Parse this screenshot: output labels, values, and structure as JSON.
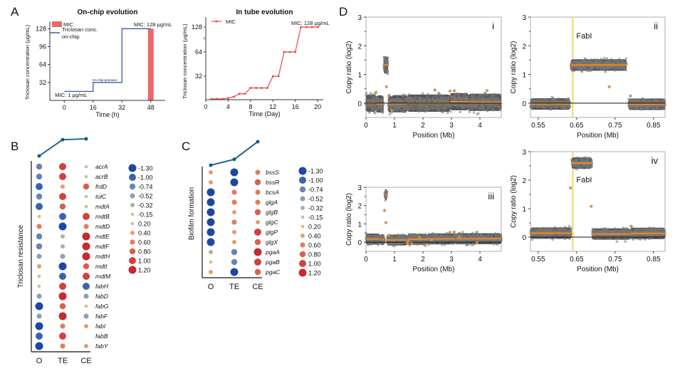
{
  "panel_letters": {
    "A": "A",
    "B": "B",
    "C": "C",
    "D": "D"
  },
  "colors": {
    "mic_bar": "#e8696b",
    "onchip_line": "#3b5ba9",
    "intube_line": "#e8474a",
    "trend_line": "#0e5a80",
    "cnv_points": "#555555",
    "cnv_segment": "#f08a1c",
    "fabi_marker": "#f2d36b"
  },
  "chart_data": [
    {
      "id": "A1",
      "type": "line",
      "title": "On-chip evolution",
      "xlabel": "Time (h)",
      "ylabel": "Triclosan concentration (μg/mL)",
      "xticks": [
        0,
        16,
        32,
        48
      ],
      "yticks": [
        32,
        64,
        96,
        128
      ],
      "xlim": [
        -8,
        56
      ],
      "ylim": [
        0,
        136
      ],
      "legend": [
        {
          "label": "MIC",
          "kind": "bar"
        },
        {
          "label": "Triclosan conc. on-chip",
          "kind": "line"
        }
      ],
      "legend_position": "top-left",
      "series": [
        {
          "name": "Triclosan conc. on-chip",
          "x": [
            0,
            16,
            16,
            32,
            32,
            48
          ],
          "y": [
            16,
            16,
            32,
            32,
            128,
            128
          ]
        }
      ],
      "bars": [
        {
          "name": "MIC",
          "x": 48,
          "value": 128
        }
      ],
      "annotations": [
        "MIC: 1 μg/mL",
        "MIC: 128 μg/mL",
        "On chip pressure"
      ]
    },
    {
      "id": "A2",
      "type": "line",
      "title": "In tube evolution",
      "xlabel": "Time (Day)",
      "ylabel": "Triclosan concentration (μg/mL)",
      "xticks": [
        0,
        4,
        8,
        12,
        16,
        20
      ],
      "yticks": [
        32,
        64,
        128
      ],
      "xlim": [
        0,
        21
      ],
      "ylim": [
        0,
        138
      ],
      "legend": [
        {
          "label": "MIC",
          "kind": "line-marker"
        }
      ],
      "legend_position": "top-left",
      "axis_break": true,
      "series": [
        {
          "name": "MIC",
          "x": [
            1,
            2,
            3,
            4,
            5,
            6,
            7,
            8,
            9,
            10,
            11,
            12,
            13,
            14,
            15,
            16,
            17,
            18,
            19,
            20
          ],
          "y": [
            1,
            1,
            1,
            2,
            4,
            8,
            8,
            16,
            16,
            16,
            16,
            32,
            32,
            64,
            64,
            64,
            128,
            128,
            128,
            128
          ],
          "ydisplay": [
            1,
            1,
            1,
            2,
            4,
            8,
            8,
            16,
            16,
            16,
            16,
            32,
            32,
            64,
            64,
            64,
            128,
            128,
            128,
            128
          ]
        }
      ],
      "annotations": [
        "MIC: 128 μg/mL"
      ]
    },
    {
      "id": "B",
      "type": "heatmap",
      "title": "",
      "ylabel": "Triclosan resistance",
      "columns": [
        "O",
        "TE",
        "CE"
      ],
      "trend": [
        0.0,
        1.0,
        1.05
      ],
      "rows": [
        "acrA",
        "acrB",
        "frdD",
        "tolC",
        "mdtA",
        "mdtB",
        "mdtD",
        "mdtE",
        "mdtF",
        "mdtH",
        "mdtI",
        "mdtM",
        "fabH",
        "fabD",
        "fabG",
        "fabF",
        "fabI",
        "fabB",
        "fabY"
      ],
      "values": [
        [
          -0.74,
          1.0,
          -0.15
        ],
        [
          -0.74,
          1.0,
          -0.15
        ],
        [
          -1.0,
          0.4,
          0.8
        ],
        [
          -0.74,
          1.0,
          -0.15
        ],
        [
          -1.0,
          0.8,
          0.2
        ],
        [
          0.2,
          -1.0,
          1.0
        ],
        [
          0.6,
          -1.3,
          0.6
        ],
        [
          -0.74,
          -0.32,
          1.2
        ],
        [
          -0.74,
          -0.32,
          1.2
        ],
        [
          -0.52,
          -0.52,
          1.2
        ],
        [
          0.4,
          -1.3,
          0.8
        ],
        [
          -0.15,
          -1.0,
          1.0
        ],
        [
          -0.15,
          1.0,
          -1.0
        ],
        [
          -0.52,
          1.2,
          -0.52
        ],
        [
          -1.3,
          0.8,
          0.2
        ],
        [
          -0.52,
          1.2,
          -0.52
        ],
        [
          -1.3,
          0.6,
          0.4
        ],
        [
          -1.0,
          1.0,
          null
        ],
        [
          -1.3,
          0.6,
          0.4
        ]
      ],
      "legend": [
        "-1.30",
        "-1.00",
        "-0.74",
        "-0.52",
        "-0.32",
        "-0.15",
        "0.20",
        "0.40",
        "0.60",
        "0.80",
        "1.00",
        "1.20"
      ]
    },
    {
      "id": "C",
      "type": "heatmap",
      "title": "",
      "ylabel": "Biofilm formation",
      "columns": [
        "O",
        "TE",
        "CE"
      ],
      "trend": [
        0.0,
        0.35,
        1.4
      ],
      "rows": [
        "bssS",
        "bssR",
        "bcsA",
        "glgA",
        "glgB",
        "glgC",
        "glgP",
        "glgX",
        "pgaA",
        "pgaB",
        "pgaC"
      ],
      "values": [
        [
          0.4,
          -1.3,
          0.6
        ],
        [
          0.4,
          -1.3,
          0.8
        ],
        [
          -1.3,
          0.6,
          0.6
        ],
        [
          -1.3,
          0.6,
          0.6
        ],
        [
          -1.3,
          0.4,
          0.8
        ],
        [
          -1.3,
          0.6,
          0.4
        ],
        [
          -1.3,
          0.4,
          1.0
        ],
        [
          -1.3,
          0.4,
          0.8
        ],
        [
          -0.32,
          -0.74,
          1.2
        ],
        [
          0.2,
          -0.74,
          1.0
        ],
        [
          0.4,
          -1.3,
          0.8
        ]
      ],
      "legend": [
        "-1.30",
        "-1.00",
        "-0.74",
        "-0.52",
        "-0.32",
        "-0.15",
        "0.20",
        "0.40",
        "0.60",
        "0.80",
        "1.00",
        "1.20"
      ]
    },
    {
      "id": "D-i",
      "type": "scatter",
      "label": "i",
      "xlabel": "Position (Mb)",
      "ylabel": "Copy ratio (log2)",
      "xlim": [
        0,
        4.75
      ],
      "ylim": [
        -0.5,
        3
      ],
      "xticks": [
        0,
        1,
        2,
        3,
        4
      ],
      "yticks": [
        0,
        1,
        2,
        3
      ],
      "segments": [
        [
          0,
          0.35,
          0.0
        ],
        [
          0.35,
          0.62,
          -0.03
        ],
        [
          0.62,
          0.78,
          1.33
        ],
        [
          0.78,
          0.9,
          -0.03
        ],
        [
          0.9,
          1.45,
          -0.02
        ],
        [
          1.45,
          2.95,
          0.0
        ],
        [
          2.95,
          3.6,
          0.05
        ],
        [
          3.6,
          4.75,
          0.03
        ]
      ],
      "baseline_noise": 0.3,
      "outliers": [
        [
          0.35,
          0.38
        ],
        [
          0.72,
          0.57
        ],
        [
          0.8,
          0.25
        ],
        [
          0.9,
          -0.25
        ],
        [
          2.42,
          0.46
        ],
        [
          2.95,
          0.42
        ],
        [
          3.1,
          0.43
        ],
        [
          4.25,
          0.44
        ]
      ]
    },
    {
      "id": "D-ii",
      "type": "scatter",
      "label": "ii",
      "xlabel": "Position (Mb)",
      "ylabel": "Copy ratio (log2)",
      "xlim": [
        0.53,
        0.88
      ],
      "ylim": [
        -0.5,
        3
      ],
      "xticks": [
        0.55,
        0.65,
        0.75,
        0.85
      ],
      "yticks": [
        0,
        1,
        2,
        3
      ],
      "segments": [
        [
          0.53,
          0.633,
          -0.03
        ],
        [
          0.635,
          0.78,
          1.33
        ],
        [
          0.785,
          0.88,
          -0.04
        ]
      ],
      "baseline_noise": 0.2,
      "outliers": [
        [
          0.735,
          0.57
        ],
        [
          0.79,
          0.25
        ]
      ],
      "marker_x": 0.64,
      "marker_label": "FabI"
    },
    {
      "id": "D-iii",
      "type": "scatter",
      "label": "iii",
      "xlabel": "Position (Mb)",
      "ylabel": "Copy ratio (log2)",
      "xlim": [
        0,
        4.75
      ],
      "ylim": [
        -0.5,
        3
      ],
      "xticks": [
        0,
        1,
        2,
        3,
        4
      ],
      "yticks": [
        0,
        1,
        2,
        3
      ],
      "segments": [
        [
          0,
          0.5,
          0.17
        ],
        [
          0.5,
          0.65,
          0.14
        ],
        [
          0.66,
          0.74,
          2.6
        ],
        [
          0.74,
          1.45,
          0.12
        ],
        [
          1.45,
          2.15,
          0.16
        ],
        [
          2.15,
          3.15,
          0.18
        ],
        [
          3.15,
          4.75,
          0.19
        ]
      ],
      "baseline_noise": 0.3,
      "outliers": [
        [
          0.65,
          1.73
        ],
        [
          0.7,
          1.07
        ],
        [
          0.8,
          0.38
        ],
        [
          1.45,
          -0.02
        ],
        [
          1.5,
          0.07
        ],
        [
          1.6,
          -0.07
        ],
        [
          1.88,
          0.26
        ],
        [
          2.07,
          -0.17
        ],
        [
          2.3,
          0.12
        ],
        [
          2.95,
          0.54
        ],
        [
          3.1,
          0.56
        ],
        [
          3.28,
          0.29
        ],
        [
          3.9,
          -0.03
        ]
      ]
    },
    {
      "id": "D-iv",
      "type": "scatter",
      "label": "iv",
      "xlabel": "Position (Mb)",
      "ylabel": "Copy ratio (log2)",
      "xlim": [
        0.53,
        0.88
      ],
      "ylim": [
        -0.5,
        3
      ],
      "xticks": [
        0.55,
        0.65,
        0.75,
        0.85
      ],
      "yticks": [
        0,
        1,
        2,
        3
      ],
      "segments": [
        [
          0.53,
          0.637,
          0.14
        ],
        [
          0.637,
          0.69,
          2.6
        ],
        [
          0.69,
          0.79,
          0.11
        ],
        [
          0.79,
          0.88,
          0.13
        ]
      ],
      "baseline_noise": 0.2,
      "outliers": [
        [
          0.634,
          1.73
        ],
        [
          0.688,
          1.08
        ],
        [
          0.792,
          0.38
        ]
      ],
      "marker_x": 0.64,
      "marker_label": "FabI"
    }
  ]
}
